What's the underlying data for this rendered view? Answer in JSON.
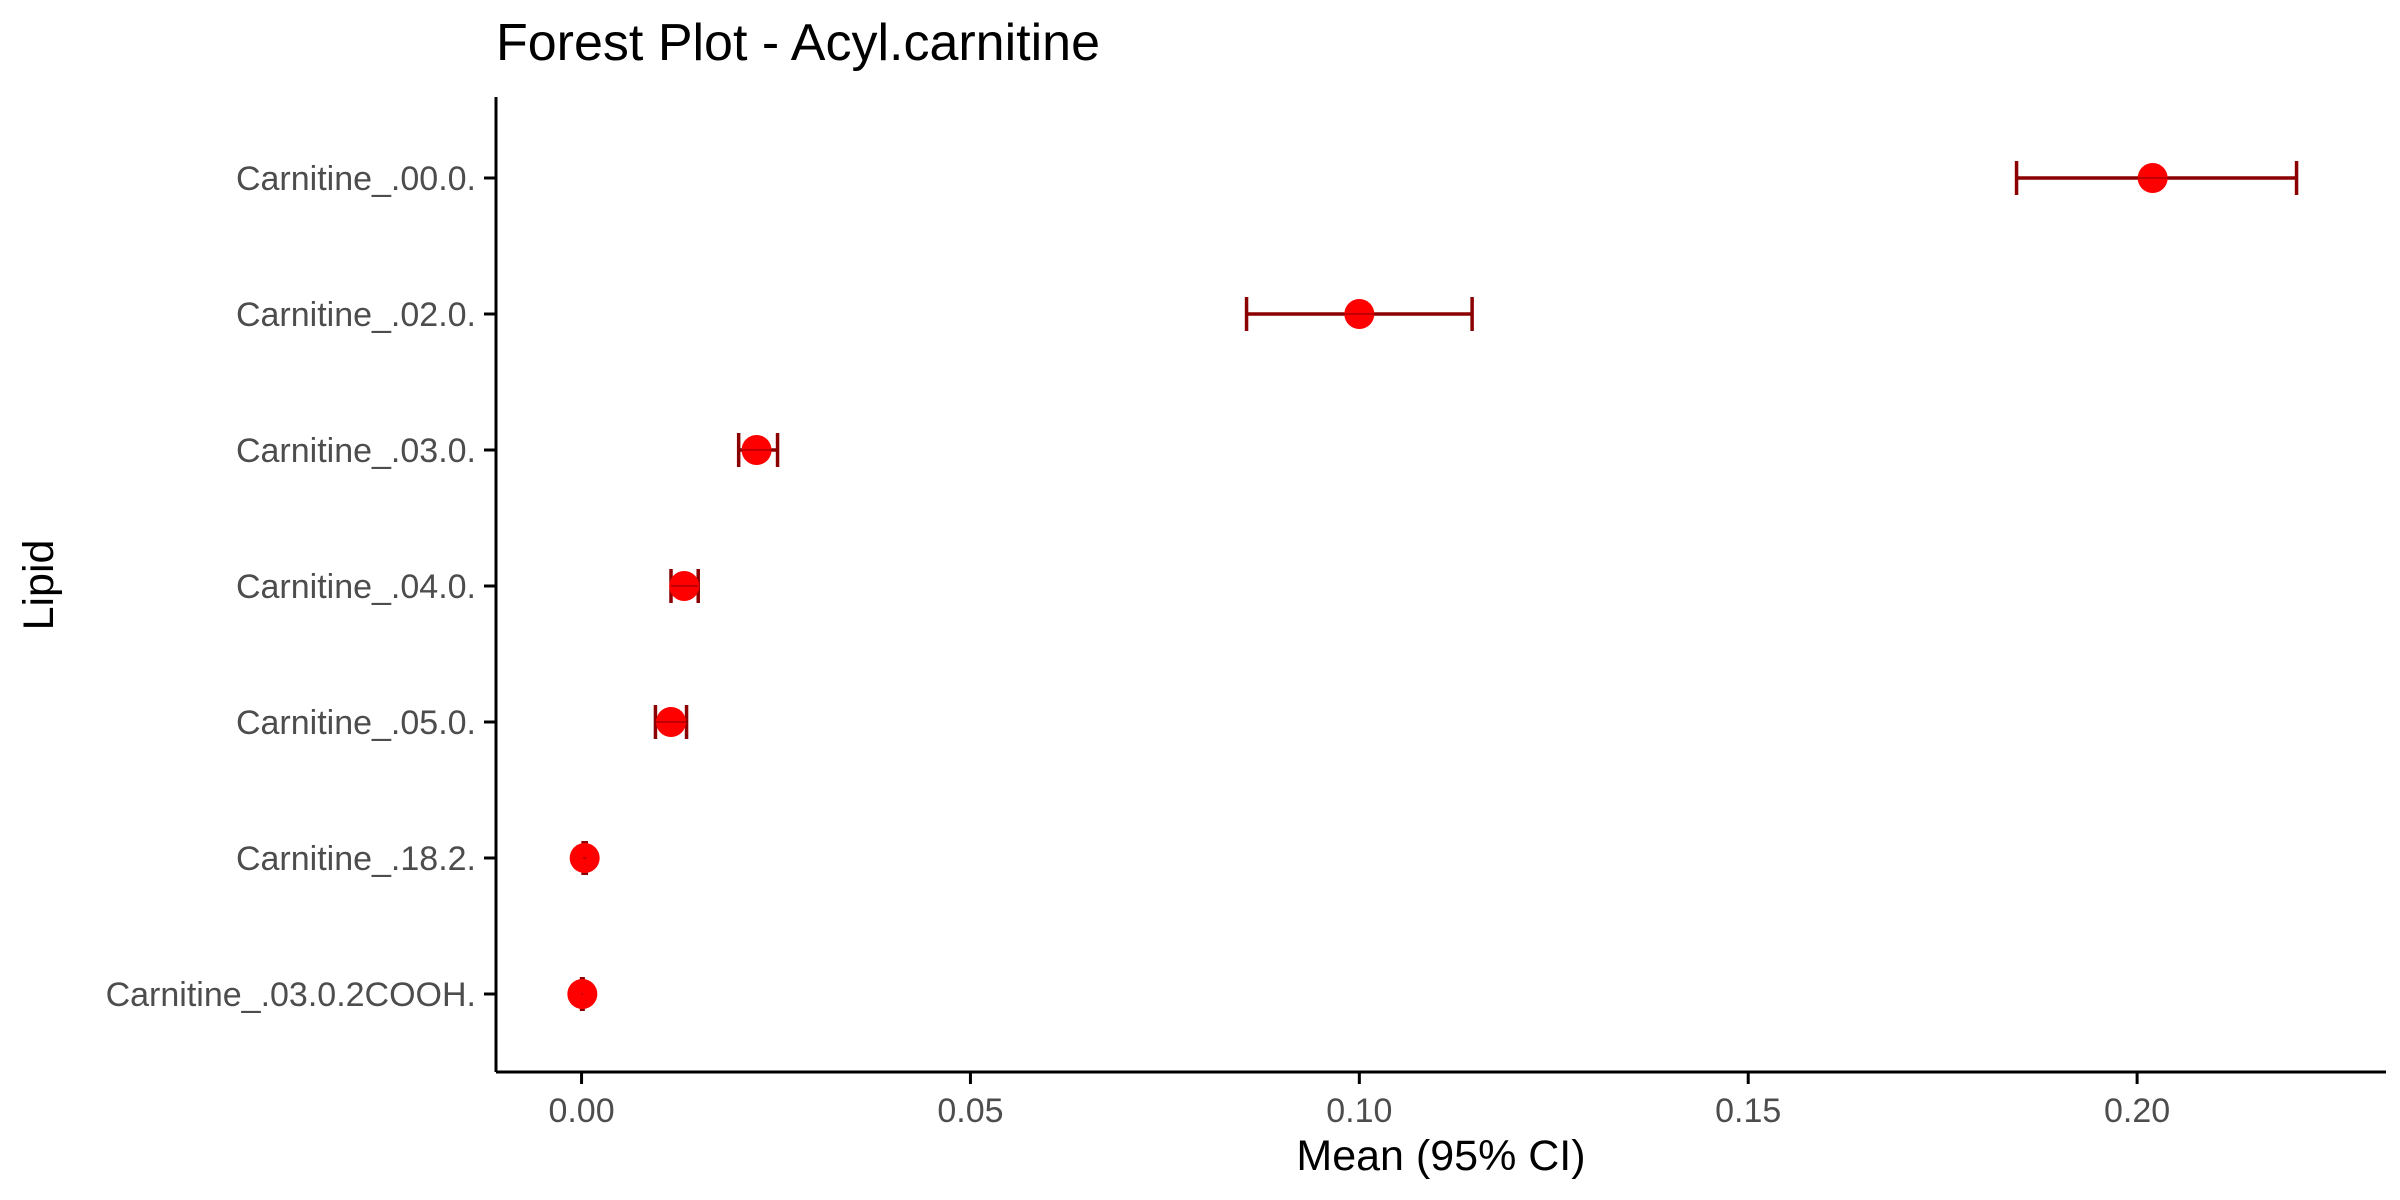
{
  "chart_data": {
    "type": "forest",
    "title": "Forest Plot - Acyl.carnitine",
    "xlabel": "Mean (95% CI)",
    "ylabel": "Lipid",
    "xlim": [
      -0.011,
      0.232
    ],
    "xticks": [
      0.0,
      0.05,
      0.1,
      0.15,
      0.2
    ],
    "xtick_labels": [
      "0.00",
      "0.05",
      "0.10",
      "0.15",
      "0.20"
    ],
    "grid": false,
    "legend": "none",
    "colors": {
      "point": "#ff0000",
      "errorbar": "#8b0000",
      "axis": "#000000",
      "tick_label": "#4d4d4d"
    },
    "rows": [
      {
        "label": "Carnitine_.00.0.",
        "mean": 0.202,
        "lower": 0.1845,
        "upper": 0.2205
      },
      {
        "label": "Carnitine_.02.0.",
        "mean": 0.1,
        "lower": 0.0855,
        "upper": 0.1145
      },
      {
        "label": "Carnitine_.03.0.",
        "mean": 0.0225,
        "lower": 0.0202,
        "upper": 0.0252
      },
      {
        "label": "Carnitine_.04.0.",
        "mean": 0.0132,
        "lower": 0.0115,
        "upper": 0.015
      },
      {
        "label": "Carnitine_.05.0.",
        "mean": 0.0115,
        "lower": 0.0095,
        "upper": 0.0135
      },
      {
        "label": "Carnitine_.18.2.",
        "mean": 0.0004,
        "lower": 0.0002,
        "upper": 0.0006
      },
      {
        "label": "Carnitine_.03.0.2COOH.",
        "mean": 0.0001,
        "lower": 0.0,
        "upper": 0.0002
      }
    ]
  }
}
